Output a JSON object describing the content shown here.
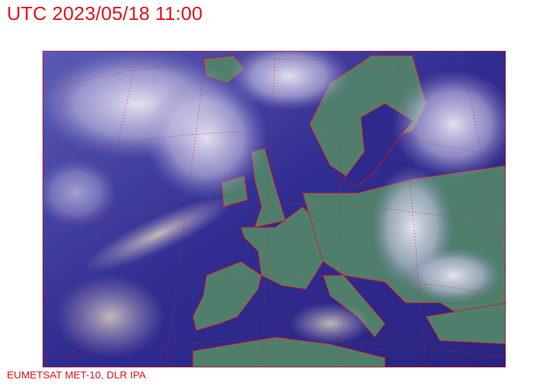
{
  "header": {
    "title": "UTC 2023/05/18 11:00"
  },
  "footer": {
    "credit": "EUMETSAT MET-10, DLR IPA"
  },
  "map": {
    "type": "satellite-composite",
    "region": "Europe and North Atlantic",
    "overlay_colors": {
      "coastline": "#e01020",
      "graticule": "#d02040"
    },
    "palette": {
      "sea": "#2e2a8c",
      "land": "#4f7f6c",
      "cloud": "#e4e0f0"
    }
  }
}
